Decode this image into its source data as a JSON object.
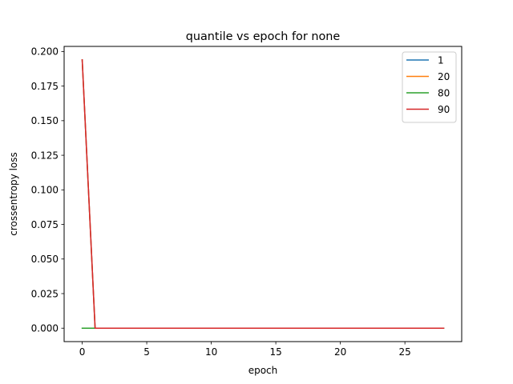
{
  "chart_data": {
    "type": "line",
    "title": "quantile vs epoch for none",
    "xlabel": "epoch",
    "ylabel": "crossentropy loss",
    "xlim": [
      -1.4,
      29.4
    ],
    "ylim": [
      -0.0097,
      0.2037
    ],
    "xticks": [
      0,
      5,
      10,
      15,
      20,
      25
    ],
    "xtick_labels": [
      "0",
      "5",
      "10",
      "15",
      "20",
      "25"
    ],
    "yticks": [
      0.0,
      0.025,
      0.05,
      0.075,
      0.1,
      0.125,
      0.15,
      0.175,
      0.2
    ],
    "ytick_labels": [
      "0.000",
      "0.025",
      "0.050",
      "0.075",
      "0.100",
      "0.125",
      "0.150",
      "0.175",
      "0.200"
    ],
    "grid": false,
    "legend_position": "top-right",
    "x": [
      0,
      1,
      2,
      3,
      4,
      5,
      6,
      7,
      8,
      9,
      10,
      11,
      12,
      13,
      14,
      15,
      16,
      17,
      18,
      19,
      20,
      21,
      22,
      23,
      24,
      25,
      26,
      27,
      28
    ],
    "series": [
      {
        "name": "1",
        "color": "#1f77b4",
        "values": [
          0.194,
          0,
          0,
          0,
          0,
          0,
          0,
          0,
          0,
          0,
          0,
          0,
          0,
          0,
          0,
          0,
          0,
          0,
          0,
          0,
          0,
          0,
          0,
          0,
          0,
          0,
          0,
          0,
          0
        ]
      },
      {
        "name": "20",
        "color": "#ff7f0e",
        "values": [
          0.194,
          0,
          0,
          0,
          0,
          0,
          0,
          0,
          0,
          0,
          0,
          0,
          0,
          0,
          0,
          0,
          0,
          0,
          0,
          0,
          0,
          0,
          0,
          0,
          0,
          0,
          0,
          0,
          0
        ]
      },
      {
        "name": "80",
        "color": "#2ca02c",
        "values": [
          0,
          0,
          0,
          0,
          0,
          0,
          0,
          0,
          0,
          0,
          0,
          0,
          0,
          0,
          0,
          0,
          0,
          0,
          0,
          0,
          0,
          0,
          0,
          0,
          0,
          0,
          0,
          0,
          0
        ]
      },
      {
        "name": "90",
        "color": "#d62728",
        "values": [
          0.194,
          0,
          0,
          0,
          0,
          0,
          0,
          0,
          0,
          0,
          0,
          0,
          0,
          0,
          0,
          0,
          0,
          0,
          0,
          0,
          0,
          0,
          0,
          0,
          0,
          0,
          0,
          0,
          0
        ]
      }
    ]
  }
}
